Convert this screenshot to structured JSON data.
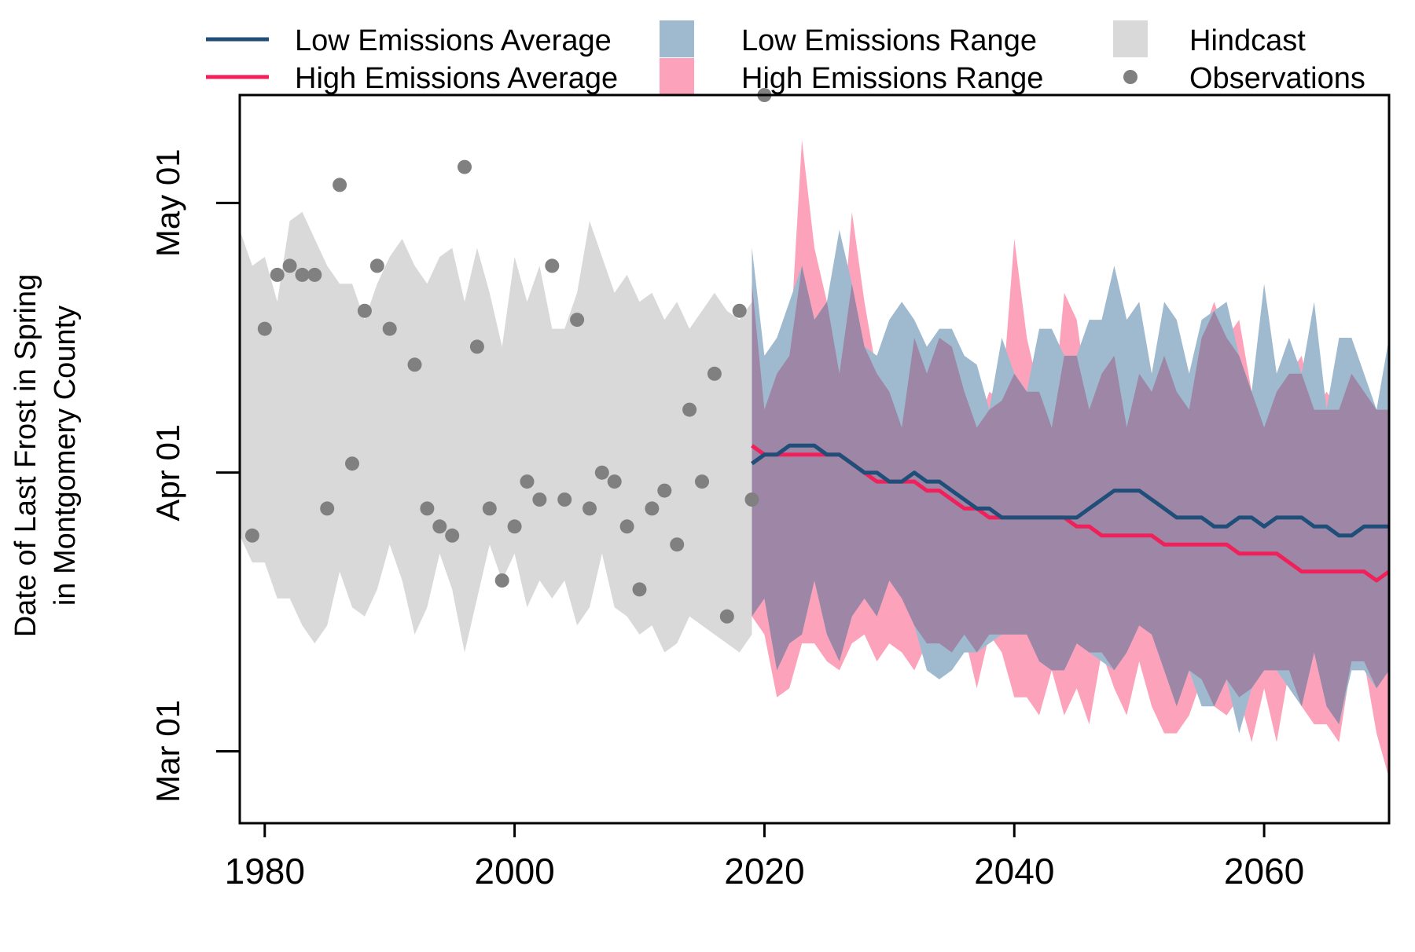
{
  "legend": {
    "items": [
      {
        "label": "Low Emissions Average",
        "kind": "line",
        "color": "#1f4e79"
      },
      {
        "label": "High Emissions Average",
        "kind": "line",
        "color": "#f0205a"
      },
      {
        "label": "Low Emissions Range",
        "kind": "box",
        "color": "#9fb9cf"
      },
      {
        "label": "High Emissions Range",
        "kind": "box",
        "color": "#fca3bb"
      },
      {
        "label": "Hindcast",
        "kind": "box",
        "color": "#d9d9d9"
      },
      {
        "label": "Observations",
        "kind": "dot",
        "color": "#808080"
      }
    ]
  },
  "chart_data": {
    "type": "line",
    "title": "",
    "ylabel": "Date of Last Frost in Spring\nin Montgomery County",
    "xlabel": "",
    "x_ticks": [
      1980,
      2000,
      2020,
      2040,
      2060
    ],
    "y_ticks": [
      "Mar 01",
      "Apr 01",
      "May 01"
    ],
    "xlim": [
      1978,
      2070
    ],
    "ylim": [
      "Feb 21",
      "May 13"
    ],
    "grid": false,
    "legend_position": "top, outside plot",
    "colors": {
      "low_avg": "#1f4e79",
      "high_avg": "#f0205a",
      "low_range": "#9fb9cf",
      "high_range": "#fca3bb",
      "overlap": "#9d86a6",
      "hindcast": "#d9d9d9",
      "observations": "#808080"
    },
    "observations": {
      "name": "Observations",
      "x": [
        1979,
        1980,
        1981,
        1982,
        1983,
        1984,
        1985,
        1986,
        1987,
        1988,
        1989,
        1990,
        1992,
        1993,
        1994,
        1995,
        1996,
        1997,
        1998,
        1999,
        2000,
        2001,
        2002,
        2003,
        2004,
        2005,
        2006,
        2007,
        2008,
        2009,
        2010,
        2011,
        2012,
        2013,
        2014,
        2015,
        2016,
        2017,
        2018,
        2019,
        2020
      ],
      "y": [
        "Mar 25",
        "Apr 17",
        "Apr 23",
        "Apr 24",
        "Apr 23",
        "Apr 23",
        "Mar 28",
        "May 03",
        "Apr 02",
        "Apr 19",
        "Apr 24",
        "Apr 17",
        "Apr 13",
        "Mar 28",
        "Mar 26",
        "Mar 25",
        "May 05",
        "Apr 15",
        "Mar 28",
        "Mar 20",
        "Mar 26",
        "Mar 31",
        "Mar 29",
        "Apr 24",
        "Mar 29",
        "Apr 18",
        "Mar 28",
        "Apr 01",
        "Mar 31",
        "Mar 26",
        "Mar 19",
        "Mar 28",
        "Mar 30",
        "Mar 24",
        "Apr 08",
        "Mar 31",
        "Apr 12",
        "Mar 16",
        "Apr 19",
        "Mar 29",
        "May 13"
      ]
    },
    "hindcast_range": {
      "name": "Hindcast",
      "x": [
        1978,
        1979,
        1980,
        1981,
        1982,
        1983,
        1984,
        1985,
        1986,
        1987,
        1988,
        1989,
        1990,
        1991,
        1992,
        1993,
        1994,
        1995,
        1996,
        1997,
        1998,
        1999,
        2000,
        2001,
        2002,
        2003,
        2004,
        2005,
        2006,
        2007,
        2008,
        2009,
        2010,
        2011,
        2012,
        2013,
        2014,
        2015,
        2016,
        2017,
        2018,
        2019
      ],
      "upper": [
        "Apr 28",
        "Apr 24",
        "Apr 25",
        "Apr 20",
        "Apr 29",
        "Apr 30",
        "Apr 27",
        "Apr 24",
        "Apr 22",
        "Apr 22",
        "Apr 18",
        "Apr 22",
        "Apr 25",
        "Apr 27",
        "Apr 24",
        "Apr 22",
        "Apr 25",
        "Apr 26",
        "Apr 20",
        "Apr 26",
        "Apr 21",
        "Apr 15",
        "Apr 25",
        "Apr 20",
        "Apr 24",
        "Apr 17",
        "Apr 17",
        "Apr 21",
        "Apr 29",
        "Apr 25",
        "Apr 21",
        "Apr 23",
        "Apr 20",
        "Apr 21",
        "Apr 18",
        "Apr 20",
        "Apr 17",
        "Apr 19",
        "Apr 21",
        "Apr 19",
        "Apr 18",
        "Apr 20"
      ],
      "lower": [
        "Mar 25",
        "Mar 22",
        "Mar 22",
        "Mar 18",
        "Mar 18",
        "Mar 15",
        "Mar 13",
        "Mar 15",
        "Mar 21",
        "Mar 17",
        "Mar 16",
        "Mar 19",
        "Mar 24",
        "Mar 20",
        "Mar 14",
        "Mar 17",
        "Mar 23",
        "Mar 19",
        "Mar 12",
        "Mar 18",
        "Mar 24",
        "Mar 20",
        "Mar 23",
        "Mar 17",
        "Mar 20",
        "Mar 18",
        "Mar 20",
        "Mar 15",
        "Mar 17",
        "Mar 23",
        "Mar 17",
        "Mar 16",
        "Mar 14",
        "Mar 15",
        "Mar 12",
        "Mar 13",
        "Mar 16",
        "Mar 15",
        "Mar 14",
        "Mar 13",
        "Mar 12",
        "Mar 14"
      ]
    },
    "series": [
      {
        "name": "Low Emissions Average",
        "x": [
          2019,
          2020,
          2021,
          2022,
          2023,
          2024,
          2025,
          2026,
          2027,
          2028,
          2029,
          2030,
          2031,
          2032,
          2033,
          2034,
          2035,
          2036,
          2037,
          2038,
          2039,
          2040,
          2041,
          2042,
          2043,
          2044,
          2045,
          2046,
          2047,
          2048,
          2049,
          2050,
          2051,
          2052,
          2053,
          2054,
          2055,
          2056,
          2057,
          2058,
          2059,
          2060,
          2061,
          2062,
          2063,
          2064,
          2065,
          2066,
          2067,
          2068,
          2069,
          2070
        ],
        "y": [
          "Apr 02",
          "Apr 03",
          "Apr 03",
          "Apr 04",
          "Apr 04",
          "Apr 04",
          "Apr 03",
          "Apr 03",
          "Apr 02",
          "Apr 01",
          "Apr 01",
          "Mar 31",
          "Mar 31",
          "Apr 01",
          "Mar 31",
          "Mar 31",
          "Mar 30",
          "Mar 29",
          "Mar 28",
          "Mar 28",
          "Mar 27",
          "Mar 27",
          "Mar 27",
          "Mar 27",
          "Mar 27",
          "Mar 27",
          "Mar 27",
          "Mar 28",
          "Mar 29",
          "Mar 30",
          "Mar 30",
          "Mar 30",
          "Mar 29",
          "Mar 28",
          "Mar 27",
          "Mar 27",
          "Mar 27",
          "Mar 26",
          "Mar 26",
          "Mar 27",
          "Mar 27",
          "Mar 26",
          "Mar 27",
          "Mar 27",
          "Mar 27",
          "Mar 26",
          "Mar 26",
          "Mar 25",
          "Mar 25",
          "Mar 26",
          "Mar 26",
          "Mar 26"
        ]
      },
      {
        "name": "High Emissions Average",
        "x": [
          2019,
          2020,
          2021,
          2022,
          2023,
          2024,
          2025,
          2026,
          2027,
          2028,
          2029,
          2030,
          2031,
          2032,
          2033,
          2034,
          2035,
          2036,
          2037,
          2038,
          2039,
          2040,
          2041,
          2042,
          2043,
          2044,
          2045,
          2046,
          2047,
          2048,
          2049,
          2050,
          2051,
          2052,
          2053,
          2054,
          2055,
          2056,
          2057,
          2058,
          2059,
          2060,
          2061,
          2062,
          2063,
          2064,
          2065,
          2066,
          2067,
          2068,
          2069,
          2070
        ],
        "y": [
          "Apr 04",
          "Apr 03",
          "Apr 03",
          "Apr 03",
          "Apr 03",
          "Apr 03",
          "Apr 03",
          "Apr 03",
          "Apr 02",
          "Apr 01",
          "Mar 31",
          "Mar 31",
          "Mar 31",
          "Mar 31",
          "Mar 30",
          "Mar 30",
          "Mar 29",
          "Mar 28",
          "Mar 28",
          "Mar 27",
          "Mar 27",
          "Mar 27",
          "Mar 27",
          "Mar 27",
          "Mar 27",
          "Mar 27",
          "Mar 26",
          "Mar 26",
          "Mar 25",
          "Mar 25",
          "Mar 25",
          "Mar 25",
          "Mar 25",
          "Mar 24",
          "Mar 24",
          "Mar 24",
          "Mar 24",
          "Mar 24",
          "Mar 24",
          "Mar 23",
          "Mar 23",
          "Mar 23",
          "Mar 23",
          "Mar 22",
          "Mar 21",
          "Mar 21",
          "Mar 21",
          "Mar 21",
          "Mar 21",
          "Mar 21",
          "Mar 20",
          "Mar 21"
        ]
      }
    ],
    "ranges": [
      {
        "name": "High Emissions Range",
        "x": [
          2019,
          2020,
          2021,
          2022,
          2023,
          2024,
          2025,
          2026,
          2027,
          2028,
          2029,
          2030,
          2031,
          2032,
          2033,
          2034,
          2035,
          2036,
          2037,
          2038,
          2039,
          2040,
          2041,
          2042,
          2043,
          2044,
          2045,
          2046,
          2047,
          2048,
          2049,
          2050,
          2051,
          2052,
          2053,
          2054,
          2055,
          2056,
          2057,
          2058,
          2059,
          2060,
          2061,
          2062,
          2063,
          2064,
          2065,
          2066,
          2067,
          2068,
          2069,
          2070
        ],
        "upper": [
          "Apr 22",
          "Apr 08",
          "Apr 12",
          "Apr 14",
          "May 08",
          "Apr 26",
          "Apr 20",
          "Apr 12",
          "Apr 30",
          "Apr 20",
          "Apr 12",
          "Apr 10",
          "Apr 06",
          "Apr 16",
          "Apr 12",
          "Apr 16",
          "Apr 15",
          "Apr 10",
          "Apr 06",
          "Apr 10",
          "Apr 09",
          "Apr 27",
          "Apr 16",
          "Apr 10",
          "Apr 06",
          "Apr 21",
          "Apr 18",
          "Apr 08",
          "Apr 12",
          "Apr 14",
          "Apr 06",
          "Apr 12",
          "Apr 10",
          "Apr 14",
          "Apr 10",
          "Apr 08",
          "Apr 16",
          "Apr 20",
          "Apr 16",
          "Apr 18",
          "Apr 10",
          "Apr 06",
          "Apr 10",
          "Apr 12",
          "Apr 14",
          "Apr 08",
          "Apr 10",
          "Apr 08",
          "Apr 12",
          "Apr 10",
          "Apr 08",
          "Apr 08"
        ],
        "lower": [
          "Mar 16",
          "Mar 14",
          "Mar 07",
          "Mar 08",
          "Mar 13",
          "Mar 13",
          "Mar 11",
          "Mar 10",
          "Mar 13",
          "Mar 14",
          "Mar 11",
          "Mar 13",
          "Mar 12",
          "Mar 10",
          "Mar 13",
          "Mar 13",
          "Mar 12",
          "Mar 14",
          "Mar 08",
          "Mar 14",
          "Mar 12",
          "Mar 07",
          "Mar 07",
          "Mar 05",
          "Mar 10",
          "Mar 05",
          "Mar 08",
          "Mar 04",
          "Mar 12",
          "Mar 08",
          "Mar 05",
          "Mar 11",
          "Mar 06",
          "Mar 03",
          "Mar 03",
          "Mar 05",
          "Mar 09",
          "Mar 06",
          "Mar 05",
          "Mar 07",
          "Mar 02",
          "Mar 08",
          "Mar 02",
          "Mar 10",
          "Mar 06",
          "Mar 04",
          "Mar 04",
          "Mar 02",
          "Mar 11",
          "Mar 11",
          "Mar 03",
          "Feb 26"
        ]
      },
      {
        "name": "Low Emissions Range",
        "x": [
          2019,
          2020,
          2021,
          2022,
          2023,
          2024,
          2025,
          2026,
          2027,
          2028,
          2029,
          2030,
          2031,
          2032,
          2033,
          2034,
          2035,
          2036,
          2037,
          2038,
          2039,
          2040,
          2041,
          2042,
          2043,
          2044,
          2045,
          2046,
          2047,
          2048,
          2049,
          2050,
          2051,
          2052,
          2053,
          2054,
          2055,
          2056,
          2057,
          2058,
          2059,
          2060,
          2061,
          2062,
          2063,
          2064,
          2065,
          2066,
          2067,
          2068,
          2069,
          2070
        ],
        "upper": [
          "Apr 26",
          "Apr 14",
          "Apr 16",
          "Apr 20",
          "Apr 24",
          "Apr 18",
          "Apr 20",
          "Apr 28",
          "Apr 22",
          "Apr 15",
          "Apr 14",
          "Apr 18",
          "Apr 20",
          "Apr 18",
          "Apr 15",
          "Apr 17",
          "Apr 17",
          "Apr 14",
          "Apr 13",
          "Apr 08",
          "Apr 16",
          "Apr 12",
          "Apr 10",
          "Apr 17",
          "Apr 17",
          "Apr 14",
          "Apr 14",
          "Apr 18",
          "Apr 18",
          "Apr 24",
          "Apr 18",
          "Apr 20",
          "Apr 12",
          "Apr 20",
          "Apr 18",
          "Apr 12",
          "Apr 18",
          "Apr 19",
          "Apr 20",
          "Apr 14",
          "Apr 10",
          "Apr 22",
          "Apr 12",
          "Apr 16",
          "Apr 12",
          "Apr 20",
          "Apr 08",
          "Apr 16",
          "Apr 16",
          "Apr 12",
          "Apr 08",
          "Apr 16"
        ],
        "lower": [
          "Mar 16",
          "Mar 18",
          "Mar 10",
          "Mar 13",
          "Mar 14",
          "Mar 20",
          "Mar 14",
          "Mar 11",
          "Mar 16",
          "Mar 18",
          "Mar 16",
          "Mar 20",
          "Mar 18",
          "Mar 15",
          "Mar 10",
          "Mar 09",
          "Mar 10",
          "Mar 12",
          "Mar 12",
          "Mar 13",
          "Mar 14",
          "Mar 14",
          "Mar 14",
          "Mar 11",
          "Mar 10",
          "Mar 10",
          "Mar 13",
          "Mar 12",
          "Mar 11",
          "Mar 10",
          "Mar 12",
          "Mar 15",
          "Mar 14",
          "Mar 10",
          "Mar 06",
          "Mar 10",
          "Mar 06",
          "Mar 06",
          "Mar 09",
          "Mar 03",
          "Mar 08",
          "Mar 10",
          "Mar 10",
          "Mar 08",
          "Mar 06",
          "Mar 12",
          "Mar 06",
          "Mar 04",
          "Mar 10",
          "Mar 10",
          "Mar 08",
          "Mar 10"
        ]
      }
    ]
  }
}
